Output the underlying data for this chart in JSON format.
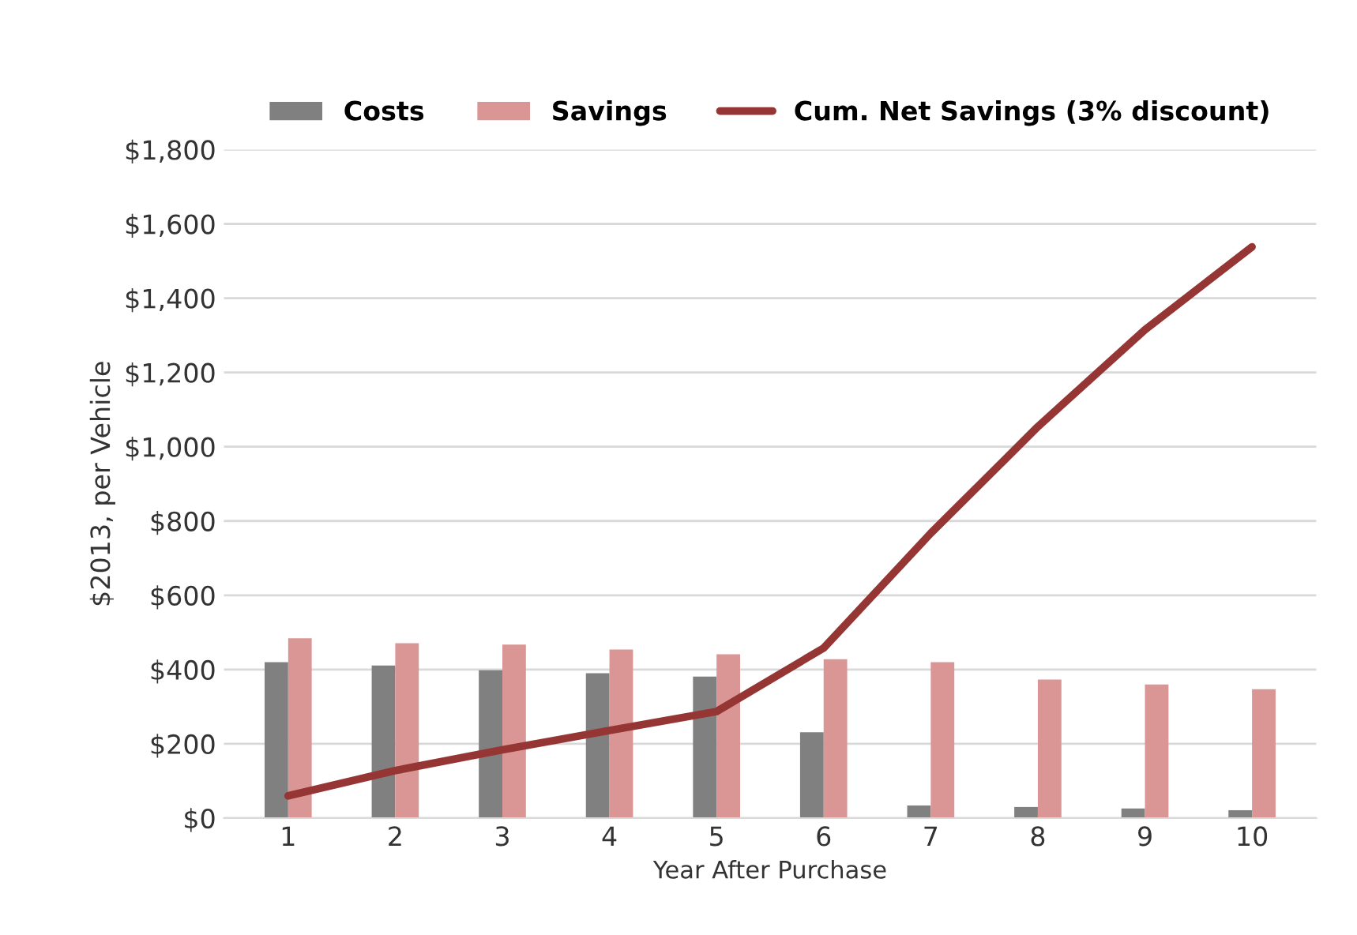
{
  "chart_data": {
    "type": "bar",
    "xlabel": "Year After Purchase",
    "ylabel": "$2013, per Vehicle",
    "categories": [
      "1",
      "2",
      "3",
      "4",
      "5",
      "6",
      "7",
      "8",
      "9",
      "10"
    ],
    "series": [
      {
        "name": "Costs",
        "color": "#808080",
        "values": [
          420,
          411,
          398,
          390,
          381,
          231,
          34,
          30,
          26,
          21
        ]
      },
      {
        "name": "Savings",
        "color": "#da9694",
        "values": [
          484,
          471,
          467,
          454,
          441,
          428,
          420,
          373,
          360,
          347
        ]
      },
      {
        "name": "Cum. Net Savings (3% discount)",
        "type": "line",
        "color": "#963634",
        "values": [
          60,
          128,
          184,
          236,
          287,
          458,
          767,
          1054,
          1315,
          1538
        ]
      }
    ],
    "ylim": [
      0,
      1800
    ],
    "yticks": [
      {
        "value": 0,
        "label": "$0"
      },
      {
        "value": 200,
        "label": "$200"
      },
      {
        "value": 400,
        "label": "$400"
      },
      {
        "value": 600,
        "label": "$600"
      },
      {
        "value": 800,
        "label": "$800"
      },
      {
        "value": 1000,
        "label": "$1,000"
      },
      {
        "value": 1200,
        "label": "$1,200"
      },
      {
        "value": 1400,
        "label": "$1,400"
      },
      {
        "value": 1600,
        "label": "$1,600"
      },
      {
        "value": 1800,
        "label": "$1,800"
      }
    ],
    "grid": "y",
    "legend": "top"
  }
}
